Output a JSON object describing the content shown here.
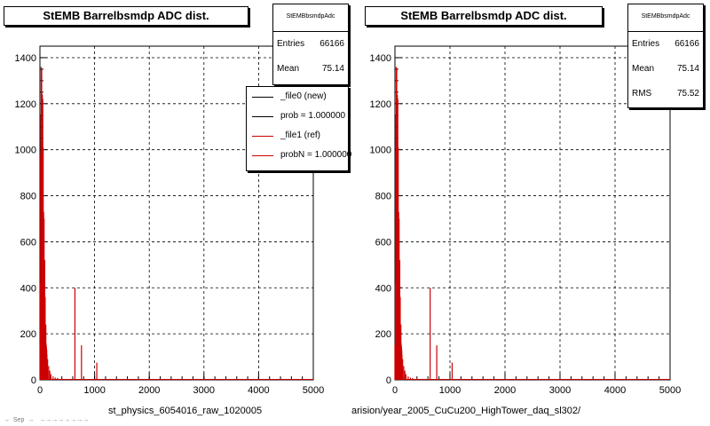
{
  "chart_data": [
    {
      "type": "histogram",
      "title": "StEMB Barrelbsmdp ADC dist.",
      "xlabel": "st_physics_6054016_raw_1020005",
      "ylabel": "",
      "xlim": [
        0,
        5000
      ],
      "ylim": [
        0,
        1450
      ],
      "xticks": [
        "0",
        "1000",
        "2000",
        "3000",
        "4000",
        "5000"
      ],
      "yticks": [
        "0",
        "200",
        "400",
        "600",
        "800",
        "1000",
        "1200",
        "1400"
      ],
      "grid": true,
      "stats": {
        "name": "StEMBbsmdpAdc",
        "rows": [
          {
            "label": "Entries",
            "value": "66166"
          },
          {
            "label": "Mean",
            "value": "75.14"
          }
        ]
      },
      "legend": {
        "placement": "top-right",
        "entries": [
          {
            "label": "_file0 (new)",
            "color": "#000000"
          },
          {
            "label": "prob = 1.000000",
            "color": "#000000"
          },
          {
            "label": "_file1 (ref)",
            "color": "#cc0000"
          },
          {
            "label": "probN = 1.000000",
            "color": "#cc0000"
          }
        ]
      },
      "series": [
        {
          "name": "_file1 (ref)",
          "color": "#cc0000",
          "x": [
            0,
            8,
            12,
            16,
            20,
            24,
            28,
            32,
            36,
            40,
            44,
            48,
            52,
            56,
            60,
            64,
            68,
            72,
            76,
            80,
            84,
            88,
            92,
            96,
            100,
            104,
            108,
            112,
            116,
            120,
            124,
            128,
            140,
            160,
            180,
            200,
            240,
            280,
            320,
            400,
            500,
            640,
            700,
            760,
            800,
            1000,
            1040,
            1200,
            1400,
            1600,
            1800,
            2000,
            2200,
            2400,
            2600,
            2800,
            3000,
            3200,
            3400,
            3600,
            3800,
            4000,
            4200,
            4400,
            4600,
            4800
          ],
          "values": [
            150,
            420,
            980,
            320,
            1150,
            1360,
            450,
            1350,
            1030,
            500,
            1240,
            940,
            1220,
            780,
            1010,
            480,
            730,
            600,
            700,
            480,
            350,
            520,
            300,
            360,
            240,
            210,
            240,
            160,
            150,
            140,
            130,
            110,
            90,
            60,
            40,
            25,
            15,
            10,
            8,
            5,
            4,
            400,
            3,
            150,
            2,
            2,
            75,
            1,
            1,
            1,
            1,
            1,
            1,
            1,
            1,
            1,
            1,
            1,
            1,
            1,
            1,
            1,
            1,
            1,
            1,
            1
          ]
        }
      ]
    },
    {
      "type": "histogram",
      "title": "StEMB Barrelbsmdp ADC dist.",
      "xlabel": "arision/year_2005_CuCu200_HighTower_daq_sl302/",
      "ylabel": "",
      "xlim": [
        0,
        5000
      ],
      "ylim": [
        0,
        1450
      ],
      "xticks": [
        "0",
        "1000",
        "2000",
        "3000",
        "4000",
        "5000"
      ],
      "yticks": [
        "0",
        "200",
        "400",
        "600",
        "800",
        "1000",
        "1200",
        "1400"
      ],
      "grid": true,
      "stats": {
        "name": "StEMBbsmdpAdc",
        "rows": [
          {
            "label": "Entries",
            "value": "66166"
          },
          {
            "label": "Mean",
            "value": "75.14"
          },
          {
            "label": "RMS",
            "value": "75.52"
          }
        ]
      },
      "series": [
        {
          "name": "",
          "color": "#cc0000",
          "x": [
            0,
            8,
            12,
            16,
            20,
            24,
            28,
            32,
            36,
            40,
            44,
            48,
            52,
            56,
            60,
            64,
            68,
            72,
            76,
            80,
            84,
            88,
            92,
            96,
            100,
            104,
            108,
            112,
            116,
            120,
            124,
            128,
            140,
            160,
            180,
            200,
            240,
            280,
            320,
            400,
            500,
            640,
            700,
            760,
            800,
            1000,
            1040,
            1200,
            1400,
            1600,
            1800,
            2000,
            2200,
            2400,
            2600,
            2800,
            3000,
            3200,
            3400,
            3600,
            3800,
            4000,
            4200,
            4400,
            4600,
            4800
          ],
          "values": [
            150,
            420,
            980,
            320,
            1150,
            1360,
            450,
            1350,
            1030,
            500,
            1240,
            940,
            1220,
            780,
            1010,
            480,
            730,
            600,
            700,
            480,
            350,
            520,
            300,
            360,
            240,
            210,
            240,
            160,
            150,
            140,
            130,
            110,
            90,
            60,
            40,
            25,
            15,
            10,
            8,
            5,
            4,
            400,
            3,
            150,
            2,
            2,
            75,
            1,
            1,
            1,
            1,
            1,
            1,
            1,
            1,
            1,
            1,
            1,
            1,
            1,
            1,
            1,
            1,
            1,
            1,
            1
          ]
        }
      ]
    }
  ],
  "footer": "→  Sep  →   →→→→→→→→"
}
